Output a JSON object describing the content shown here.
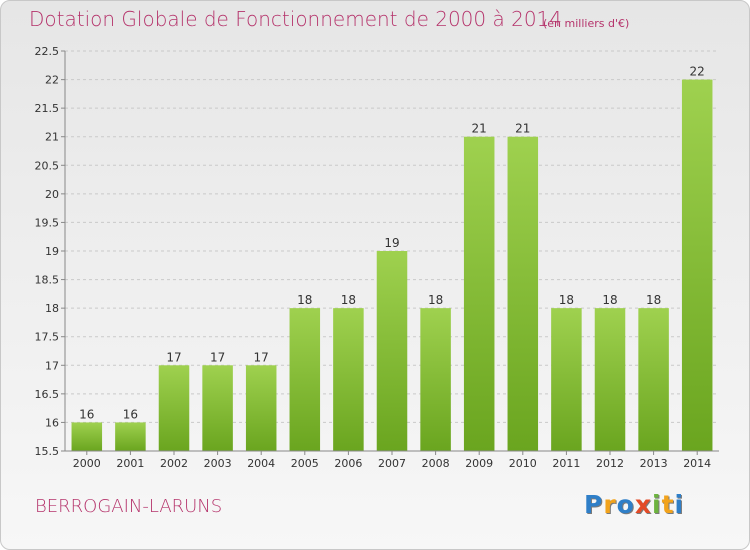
{
  "header": {
    "title": "Dotation Globale de Fonctionnement de 2000 à 2014",
    "unit": "(en milliers d'€)"
  },
  "footer": {
    "commune": "BERROGAIN-LARUNS",
    "logo": "Proxiti"
  },
  "colors": {
    "title": "#b5336b",
    "bar_light": "#9acd4a",
    "bar_dark": "#6aa51f",
    "grid": "#c8c8c8"
  },
  "chart_data": {
    "type": "bar",
    "title": "Dotation Globale de Fonctionnement de 2000 à 2014",
    "xlabel": "",
    "ylabel": "",
    "ylim": [
      15.5,
      22.5
    ],
    "yticks": [
      15.5,
      16,
      16.5,
      17,
      17.5,
      18,
      18.5,
      19,
      19.5,
      20,
      20.5,
      21,
      21.5,
      22,
      22.5
    ],
    "grid": true,
    "categories": [
      "2000",
      "2001",
      "2002",
      "2003",
      "2004",
      "2005",
      "2006",
      "2007",
      "2008",
      "2009",
      "2010",
      "2011",
      "2012",
      "2013",
      "2014"
    ],
    "values": [
      16,
      16,
      17,
      17,
      17,
      18,
      18,
      19,
      18,
      21,
      21,
      18,
      18,
      18,
      22
    ]
  }
}
